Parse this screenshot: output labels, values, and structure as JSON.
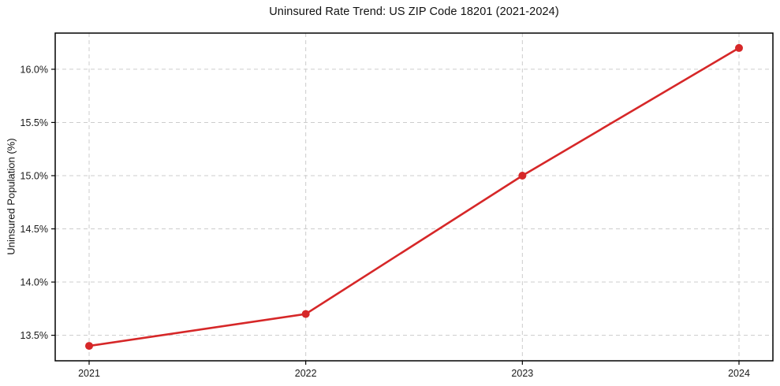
{
  "chart_data": {
    "type": "line",
    "title": "Uninsured Rate Trend: US ZIP Code 18201 (2021-2024)",
    "xlabel": "",
    "ylabel": "Uninsured Population (%)",
    "categories": [
      "2021",
      "2022",
      "2023",
      "2024"
    ],
    "series": [
      {
        "name": "Uninsured Population (%)",
        "values": [
          13.4,
          13.7,
          15.0,
          16.2
        ]
      }
    ],
    "yticks": [
      13.5,
      14.0,
      14.5,
      15.0,
      15.5,
      16.0
    ],
    "ytick_labels": [
      "13.5%",
      "14.0%",
      "14.5%",
      "15.0%",
      "15.5%",
      "16.0%"
    ],
    "ylim": [
      13.26,
      16.34
    ],
    "grid": true,
    "grid_style": "dashed",
    "legend_position": "none",
    "colors": {
      "line": "#d62728",
      "marker": "#d62728",
      "grid": "#cccccc",
      "axis": "#000000",
      "text": "#1a1a1a",
      "background": "#ffffff"
    }
  }
}
